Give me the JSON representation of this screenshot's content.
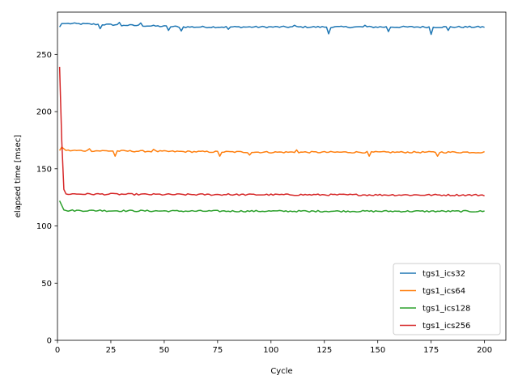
{
  "chart_data": {
    "type": "line",
    "title": "",
    "xlabel": "Cycle",
    "ylabel": "elapsed time [msec]",
    "xlim": [
      0,
      210
    ],
    "ylim": [
      0,
      287
    ],
    "xticks": [
      0,
      25,
      50,
      75,
      100,
      125,
      150,
      175,
      200
    ],
    "yticks": [
      0,
      50,
      100,
      150,
      200,
      250
    ],
    "grid": false,
    "legend_position": "lower-right",
    "x_start": 1,
    "x_end": 200,
    "series": [
      {
        "name": "tgs1_ics32",
        "color": "#1f77b4",
        "base": [
          [
            1,
            274
          ],
          [
            2,
            277
          ],
          [
            6,
            277
          ],
          [
            25,
            276
          ],
          [
            60,
            274
          ],
          [
            100,
            274
          ],
          [
            200,
            274
          ]
        ],
        "dips": [
          [
            20,
            272.5
          ],
          [
            30,
            275
          ],
          [
            52,
            271
          ],
          [
            58,
            270.5
          ],
          [
            80,
            272
          ],
          [
            127,
            268
          ],
          [
            155,
            270
          ],
          [
            175,
            267.5
          ],
          [
            183,
            271
          ]
        ],
        "spikes": [
          [
            29,
            278
          ],
          [
            39,
            277.5
          ],
          [
            111,
            275.5
          ],
          [
            144,
            275.5
          ]
        ]
      },
      {
        "name": "tgs1_ics64",
        "color": "#ff7f0e",
        "base": [
          [
            1,
            166
          ],
          [
            2,
            169
          ],
          [
            4,
            166
          ],
          [
            60,
            165
          ],
          [
            100,
            164.5
          ],
          [
            200,
            164.5
          ]
        ],
        "dips": [
          [
            27,
            161
          ],
          [
            76,
            161
          ],
          [
            90,
            162
          ],
          [
            146,
            161
          ],
          [
            178,
            161
          ]
        ],
        "spikes": [
          [
            15,
            167.5
          ],
          [
            45,
            167
          ],
          [
            112,
            166.5
          ],
          [
            178.5,
            166.5
          ]
        ]
      },
      {
        "name": "tgs1_ics128",
        "color": "#2ca02c",
        "base": [
          [
            1,
            122
          ],
          [
            2,
            118
          ],
          [
            3,
            114
          ],
          [
            4,
            113.5
          ],
          [
            60,
            113
          ],
          [
            200,
            112.8
          ]
        ],
        "dips": [
          [
            118,
            112.2
          ]
        ],
        "spikes": [
          [
            20,
            114
          ]
        ]
      },
      {
        "name": "tgs1_ics256",
        "color": "#d62728",
        "base": [
          [
            1,
            239
          ],
          [
            2,
            175
          ],
          [
            3,
            132
          ],
          [
            4,
            128
          ],
          [
            50,
            127.5
          ],
          [
            200,
            127
          ]
        ],
        "dips": [],
        "spikes": [
          [
            25,
            128.5
          ],
          [
            80,
            128.2
          ]
        ]
      }
    ]
  }
}
